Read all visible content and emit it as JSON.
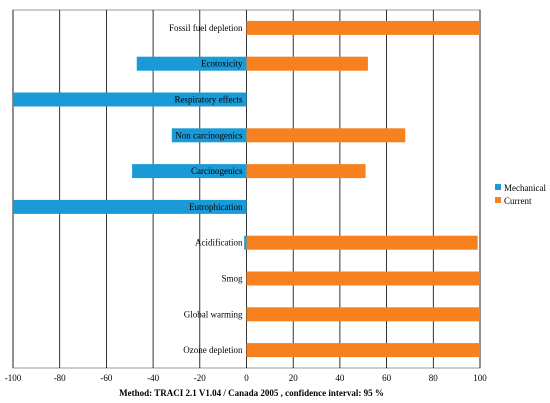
{
  "chart_data": {
    "type": "bar",
    "orientation": "horizontal",
    "categories": [
      "Fossil fuel depletion",
      "Ecotoxicity",
      "Respiratory effects",
      "Non carcinogenics",
      "Carcinogenics",
      "Eutrophication",
      "Acidification",
      "Smog",
      "Global warming",
      "Ozone depletion"
    ],
    "series": [
      {
        "name": "Mechanical",
        "color": "#1a9bd7",
        "values": [
          0,
          -47,
          -100,
          -32,
          -49,
          -100,
          -1,
          0,
          0,
          0
        ]
      },
      {
        "name": "Current",
        "color": "#f7811f",
        "values": [
          100,
          52,
          0,
          68,
          51,
          0,
          99,
          100,
          100,
          100
        ]
      }
    ],
    "xlim": [
      -100,
      100
    ],
    "xticks": [
      "-100",
      "-80",
      "-60",
      "-40",
      "-20",
      "0",
      "20",
      "40",
      "60",
      "80",
      "100"
    ],
    "xlabel": "Method: TRACI 2.1 V1.04 / Canada 2005 , confidence interval: 95 %",
    "legend_position": "right",
    "grid": true
  }
}
